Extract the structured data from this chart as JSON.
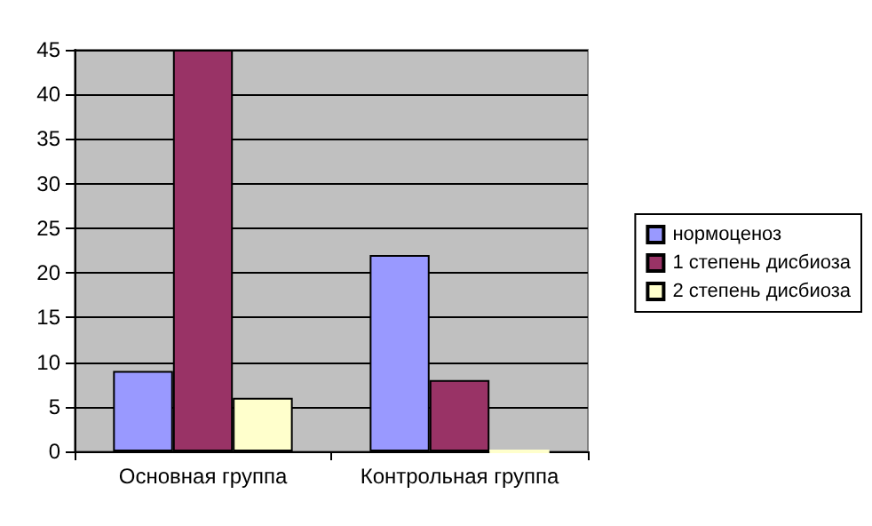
{
  "chart_data": {
    "type": "bar",
    "categories": [
      "Основная группа",
      "Контрольная группа"
    ],
    "series": [
      {
        "name": "нормоценоз",
        "color": "#9999ff",
        "values": [
          9,
          22
        ]
      },
      {
        "name": "1 степень дисбиоза",
        "color": "#993366",
        "values": [
          45,
          8
        ]
      },
      {
        "name": "2 степень дисбиоза",
        "color": "#ffffcc",
        "values": [
          6,
          0
        ]
      }
    ],
    "ylim": [
      0,
      45
    ],
    "yticks": [
      0,
      5,
      10,
      15,
      20,
      25,
      30,
      35,
      40,
      45
    ],
    "grid": "y",
    "legend": "right"
  }
}
